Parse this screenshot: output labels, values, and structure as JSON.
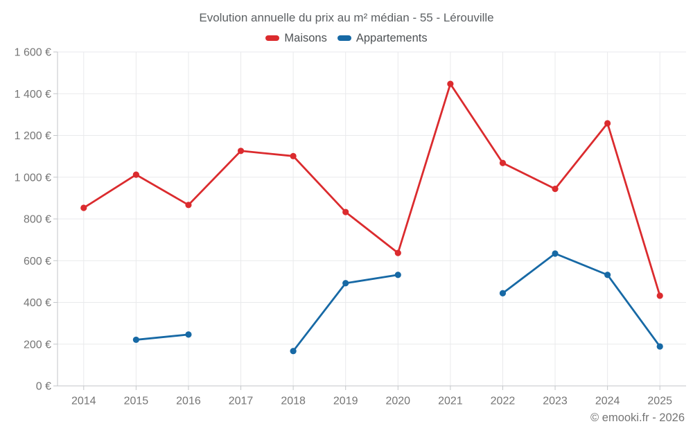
{
  "header": {
    "title": "Evolution annuelle du prix au m² médian - 55 - Lérouville"
  },
  "legend": [
    {
      "label": "Maisons",
      "color": "#db2b2e"
    },
    {
      "label": "Appartements",
      "color": "#1769a5"
    }
  ],
  "footer": {
    "credit": "© emooki.fr - 2026"
  },
  "chart_data": {
    "type": "line",
    "title": "Evolution annuelle du prix au m² médian - 55 - Lérouville",
    "categories": [
      "2014",
      "2015",
      "2016",
      "2017",
      "2018",
      "2019",
      "2020",
      "2021",
      "2022",
      "2023",
      "2024",
      "2025"
    ],
    "series": [
      {
        "name": "Maisons",
        "color": "#db2b2e",
        "values": [
          853,
          1012,
          867,
          1126,
          1101,
          833,
          637,
          1447,
          1068,
          944,
          1258,
          432
        ]
      },
      {
        "name": "Appartements",
        "color": "#1769a5",
        "values": [
          null,
          221,
          246,
          null,
          167,
          492,
          532,
          null,
          444,
          634,
          532,
          189
        ]
      }
    ],
    "xlabel": "",
    "ylabel": "",
    "ylim": [
      0,
      1600
    ],
    "ytick_step": 200,
    "ytick_labels": [
      "0 €",
      "200 €",
      "400 €",
      "600 €",
      "800 €",
      "1 000 €",
      "1 200 €",
      "1 400 €",
      "1 600 €"
    ],
    "unit": "€",
    "grid": true,
    "legend_position": "top"
  }
}
